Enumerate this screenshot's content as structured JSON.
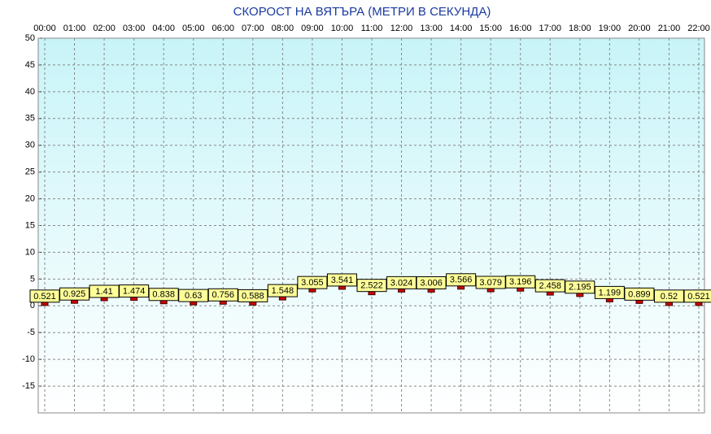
{
  "chart_data": {
    "type": "scatter",
    "title": "СКОРОСТ НА ВЯТЪРА (МЕТРИ В СЕКУНДА)",
    "categories": [
      "00:00",
      "01:00",
      "02:00",
      "03:00",
      "04:00",
      "05:00",
      "06:00",
      "07:00",
      "08:00",
      "09:00",
      "10:00",
      "11:00",
      "12:00",
      "13:00",
      "14:00",
      "15:00",
      "16:00",
      "17:00",
      "18:00",
      "19:00",
      "20:00",
      "21:00",
      "22:00"
    ],
    "values": [
      0.521,
      0.925,
      1.41,
      1.474,
      0.838,
      0.63,
      0.756,
      0.588,
      1.548,
      3.055,
      3.541,
      2.522,
      3.024,
      3.006,
      3.566,
      3.079,
      3.196,
      2.458,
      2.195,
      1.199,
      0.899,
      0.52,
      0.521
    ],
    "color": "#cc0000",
    "label_color": "#ffff99",
    "ylim": [
      -20,
      50
    ],
    "yticks": [
      -15,
      -10,
      -5,
      0,
      5,
      10,
      15,
      20,
      25,
      30,
      35,
      40,
      45,
      50
    ],
    "grid": true
  }
}
